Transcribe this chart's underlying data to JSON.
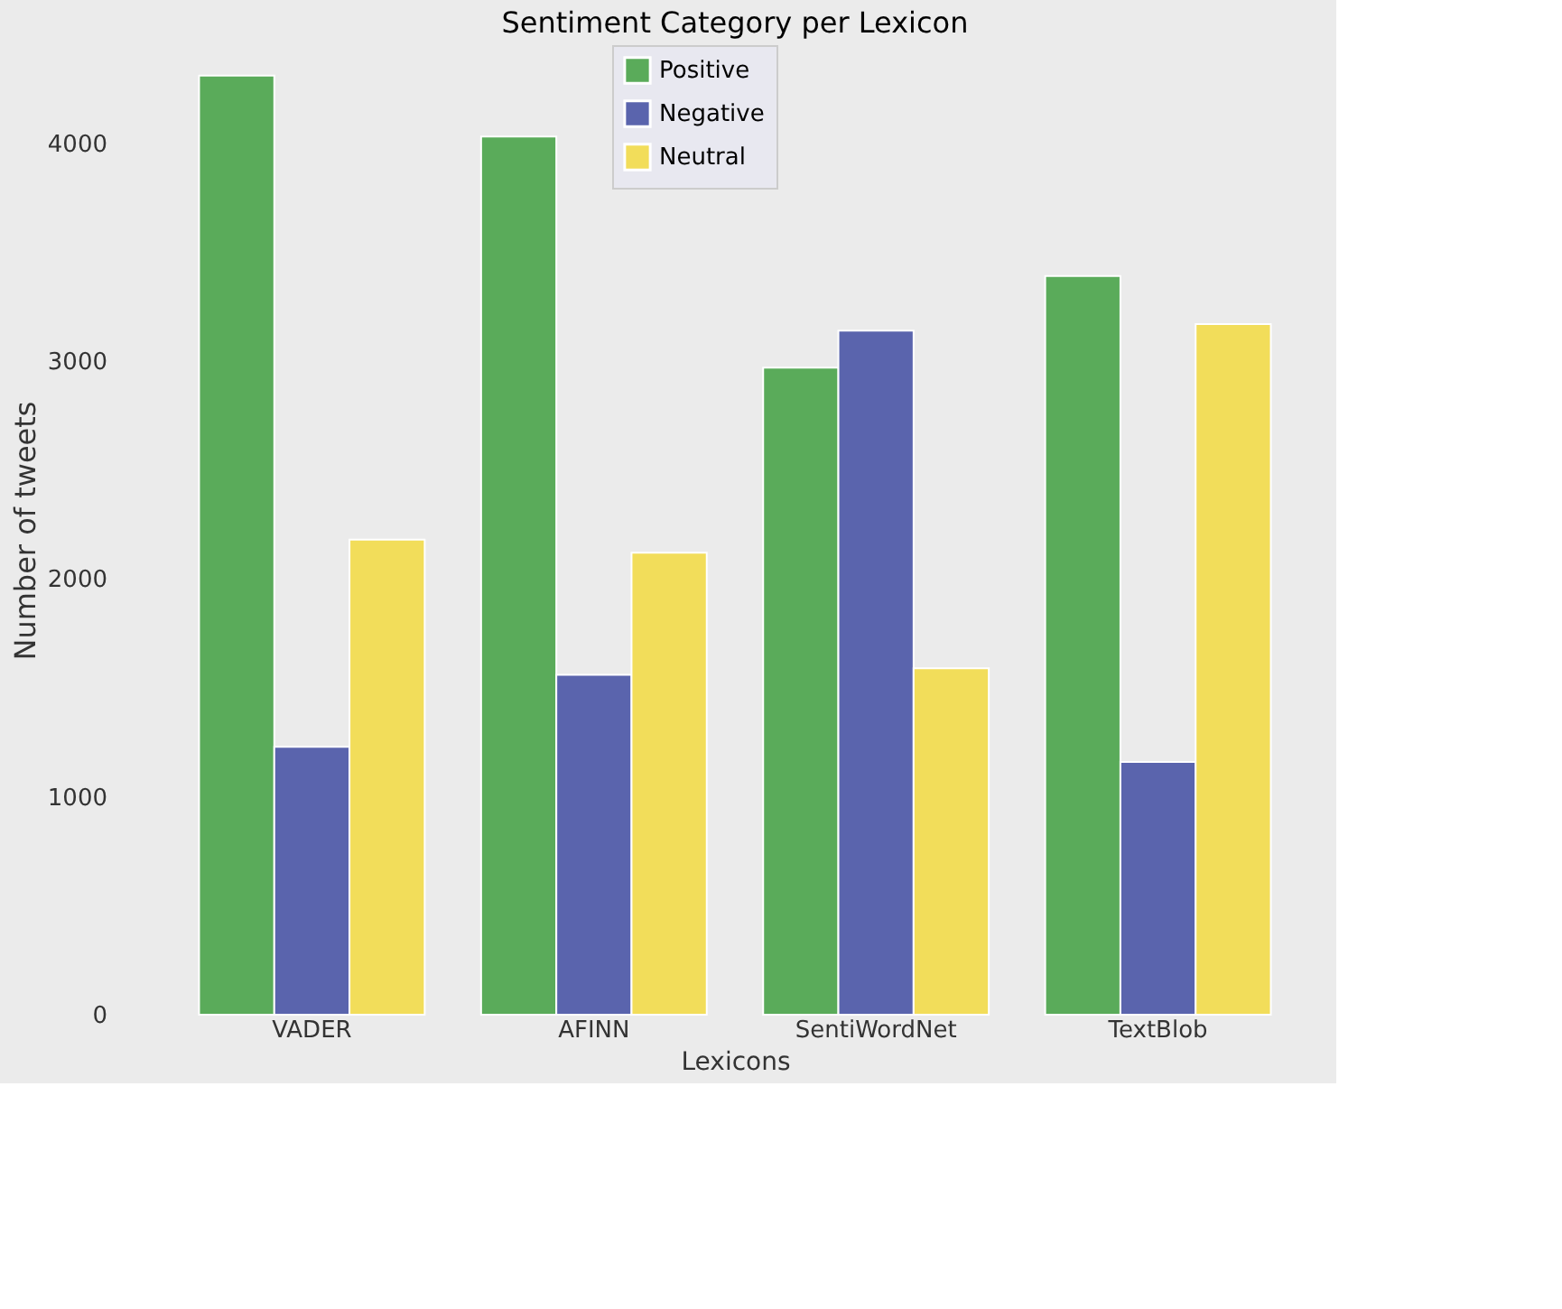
{
  "chart_data": {
    "type": "bar",
    "title": "Sentiment Category per Lexicon",
    "xlabel": "Lexicons",
    "ylabel": "Number of tweets",
    "categories": [
      "VADER",
      "AFINN",
      "SentiWordNet",
      "TextBlob"
    ],
    "series": [
      {
        "name": "Positive",
        "color": "#5aab5a",
        "values": [
          4310,
          4030,
          2970,
          3390
        ]
      },
      {
        "name": "Negative",
        "color": "#5a64ad",
        "values": [
          1230,
          1560,
          3140,
          1160
        ]
      },
      {
        "name": "Neutral",
        "color": "#f2dd5a",
        "values": [
          2180,
          2120,
          1590,
          3170
        ]
      }
    ],
    "ylim": [
      0,
      4450
    ],
    "yticks": [
      0,
      1000,
      2000,
      3000,
      4000
    ],
    "grid": false,
    "legend": "top"
  }
}
